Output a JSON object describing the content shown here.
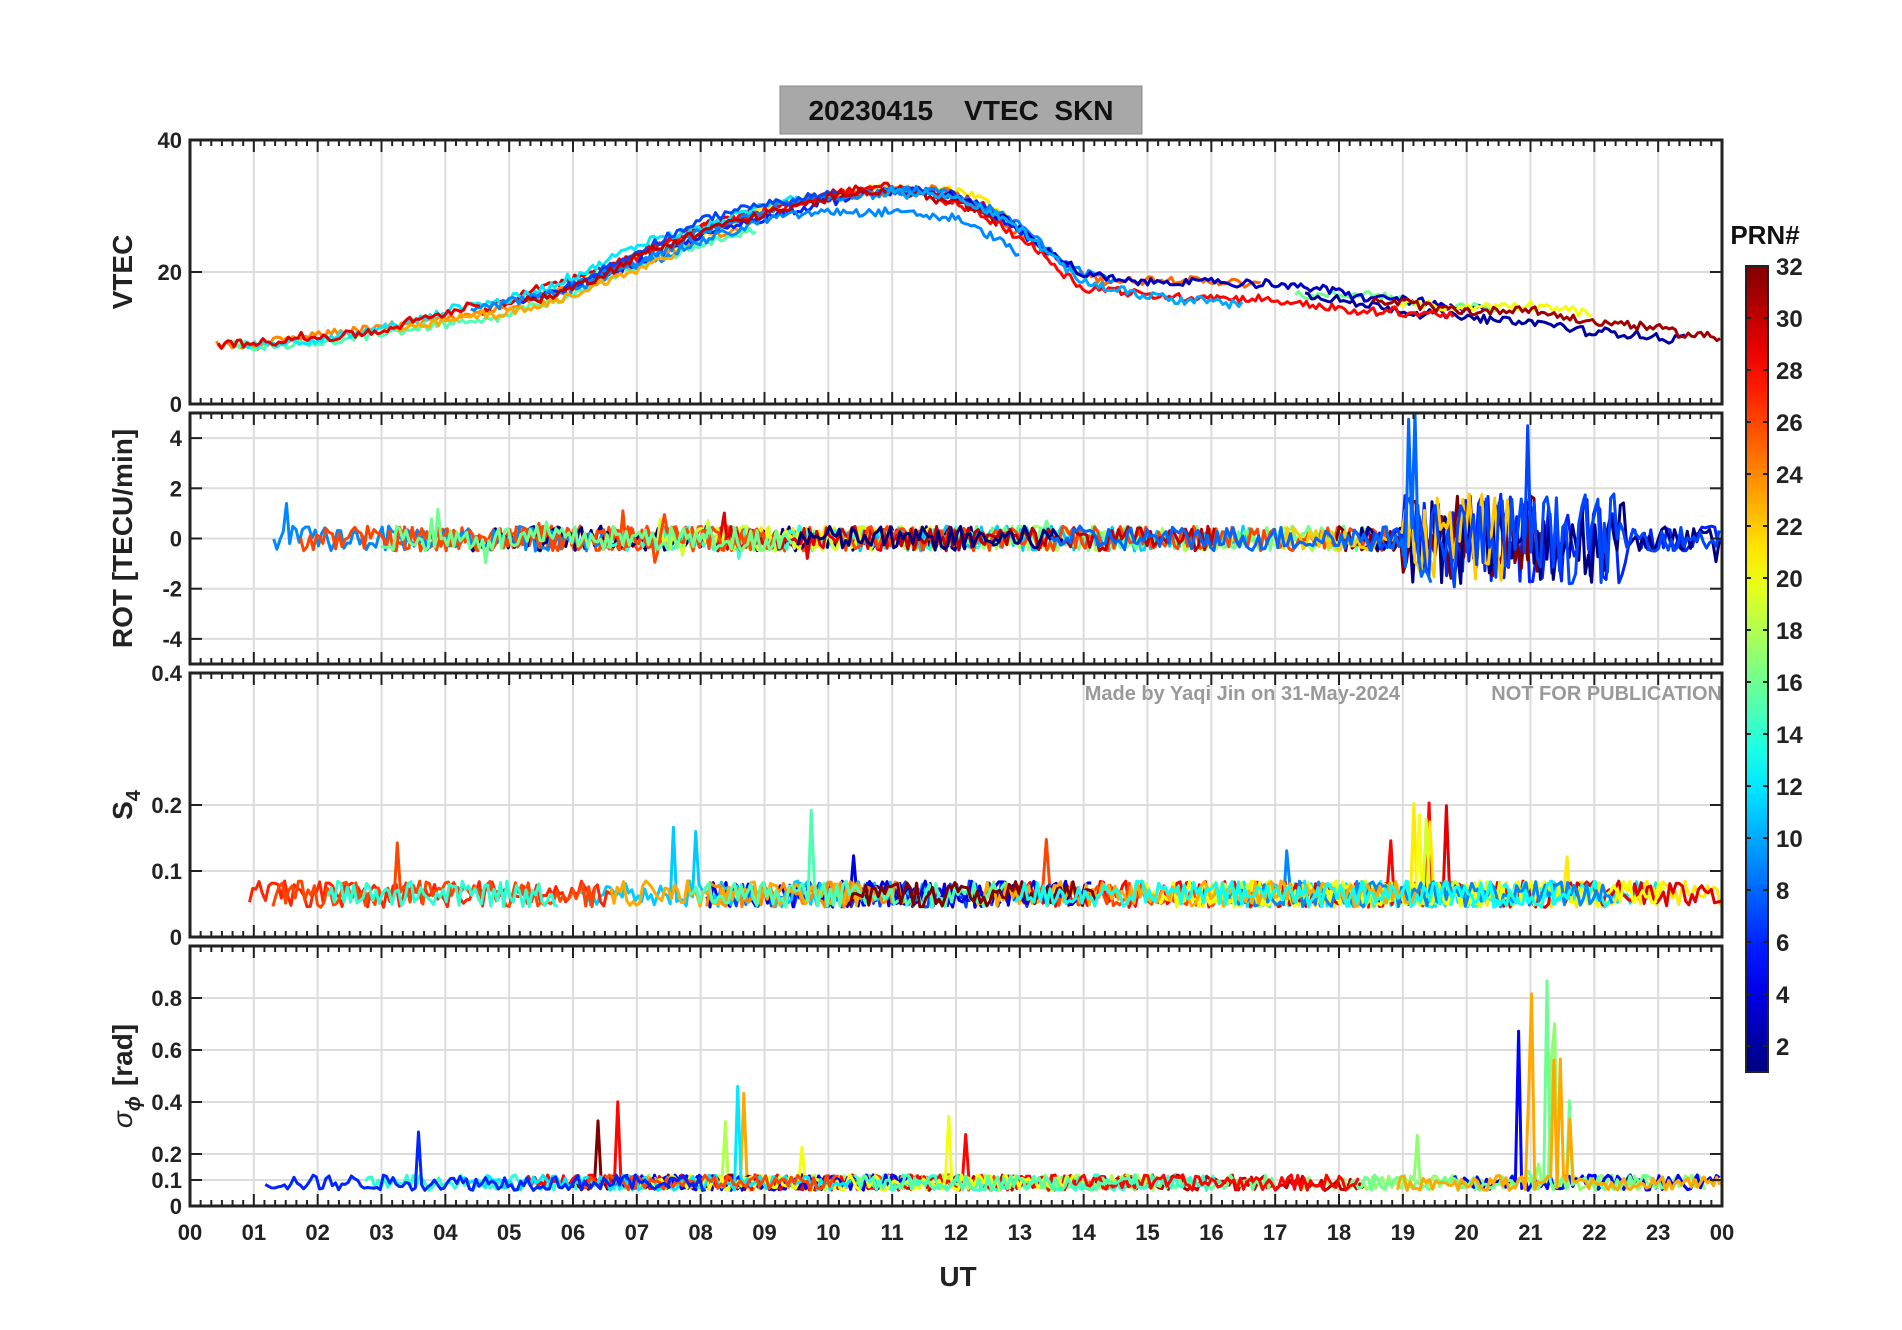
{
  "figure": {
    "title": "20230415    VTEC  SKN",
    "watermark_left": "Made by Yaqi Jin on 31-May-2024",
    "watermark_right": "NOT FOR PUBLICATION",
    "xlabel": "UT",
    "title_box_color": "#a8a8a8"
  },
  "chart_data": [
    {
      "type": "line",
      "panel": "vtec",
      "ylabel": "VTEC",
      "ylim": [
        0,
        40
      ],
      "yticks": [
        {
          "v": 0,
          "label": "0"
        },
        {
          "v": 20,
          "label": "20"
        },
        {
          "v": 40,
          "label": "40"
        }
      ],
      "grid": true,
      "series_by_prn": true,
      "trend": {
        "x": [
          0,
          1,
          2,
          3,
          4,
          5,
          6,
          7,
          8,
          9,
          10,
          11,
          12,
          13,
          14,
          15,
          16,
          17,
          18,
          19,
          20,
          21,
          22,
          23,
          24
        ],
        "y": [
          9,
          9,
          10,
          11,
          13,
          15,
          18,
          22,
          26,
          29,
          31,
          32,
          31,
          26,
          19,
          18,
          18,
          17,
          16,
          15,
          14,
          14,
          12,
          11,
          10
        ]
      }
    },
    {
      "type": "line",
      "panel": "rot",
      "ylabel": "ROT [TECU/min]",
      "ylim": [
        -5,
        5
      ],
      "yticks": [
        {
          "v": -4,
          "label": "-4"
        },
        {
          "v": -2,
          "label": "-2"
        },
        {
          "v": 0,
          "label": "0"
        },
        {
          "v": 2,
          "label": "2"
        },
        {
          "v": 4,
          "label": "4"
        }
      ],
      "grid": true,
      "series_by_prn": true
    },
    {
      "type": "line",
      "panel": "s4",
      "ylabel": "S",
      "ylabel_sub": "4",
      "ylim": [
        0,
        0.4
      ],
      "yticks": [
        {
          "v": 0,
          "label": "0"
        },
        {
          "v": 0.1,
          "label": "0.1"
        },
        {
          "v": 0.2,
          "label": "0.2"
        },
        {
          "v": 0.4,
          "label": "0.4"
        }
      ],
      "grid": true,
      "series_by_prn": true
    },
    {
      "type": "line",
      "panel": "sigma_phi",
      "ylabel": "σ",
      "ylabel_sub": "ϕ",
      "ylabel_unit": "[rad]",
      "ylim": [
        0,
        1
      ],
      "yticks": [
        {
          "v": 0,
          "label": "0"
        },
        {
          "v": 0.1,
          "label": "0.1"
        },
        {
          "v": 0.2,
          "label": "0.2"
        },
        {
          "v": 0.4,
          "label": "0.4"
        },
        {
          "v": 0.6,
          "label": "0.6"
        },
        {
          "v": 0.8,
          "label": "0.8"
        }
      ],
      "grid": true,
      "series_by_prn": true
    }
  ],
  "x_axis": {
    "xlim": [
      0,
      24
    ],
    "ticks": [
      "00",
      "01",
      "02",
      "03",
      "04",
      "05",
      "06",
      "07",
      "08",
      "09",
      "10",
      "11",
      "12",
      "13",
      "14",
      "15",
      "16",
      "17",
      "18",
      "19",
      "20",
      "21",
      "22",
      "23",
      "00"
    ]
  },
  "colorbar": {
    "label": "PRN#",
    "range": [
      1,
      32
    ],
    "ticks": [
      {
        "v": 2,
        "label": "2"
      },
      {
        "v": 4,
        "label": "4"
      },
      {
        "v": 6,
        "label": "6"
      },
      {
        "v": 8,
        "label": "8"
      },
      {
        "v": 10,
        "label": "10"
      },
      {
        "v": 12,
        "label": "12"
      },
      {
        "v": 14,
        "label": "14"
      },
      {
        "v": 16,
        "label": "16"
      },
      {
        "v": 18,
        "label": "18"
      },
      {
        "v": 20,
        "label": "20"
      },
      {
        "v": 22,
        "label": "22"
      },
      {
        "v": 24,
        "label": "24"
      },
      {
        "v": 26,
        "label": "26"
      },
      {
        "v": 28,
        "label": "28"
      },
      {
        "v": 30,
        "label": "30"
      },
      {
        "v": 32,
        "label": "32"
      }
    ],
    "colormap": "jet"
  }
}
